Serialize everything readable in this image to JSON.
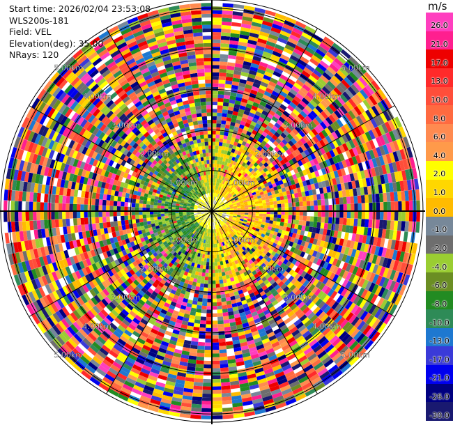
{
  "header": {
    "start_time": "Start time: 2026/02/04 23:53:08",
    "instrument": "WLS200s-181",
    "field": "Field: VEL",
    "elevation": "Elevation(deg): 35.00",
    "nrays": "NRays: 120"
  },
  "chart_data": {
    "type": "heatmap",
    "projection": "polar PPI scan",
    "field": "VEL",
    "elevation_deg": 35.0,
    "n_rays": 120,
    "range_ring_labels": [
      "1.00km",
      "2.00km",
      "3.00km",
      "4.00km",
      "5.00km"
    ],
    "range_rings_km": [
      1,
      2,
      3,
      4,
      5
    ],
    "max_range_km": 5.2,
    "pattern": "near range (< ~2 km): coherent velocities, positive (yellow/orange) toward the north-east and south-east, negative (green) toward the west; beyond ~2 km: noisy speckle across the full color range"
  },
  "colorbar": {
    "unit": "m/s",
    "ticks": [
      "26.0",
      "21.0",
      "17.0",
      "13.0",
      "10.0",
      "8.0",
      "6.0",
      "4.0",
      "2.0",
      "1.0",
      "0.0",
      "-1.0",
      "-2.0",
      "-4.0",
      "-6.0",
      "-8.0",
      "-10.0",
      "-13.0",
      "-17.0",
      "-21.0",
      "-26.0",
      "-30.0"
    ],
    "colors": [
      "#ff3fbf",
      "#ff1f8f",
      "#ee0000",
      "#ff2a2a",
      "#ff4e3a",
      "#ff6a40",
      "#ff8a50",
      "#ff9a4a",
      "#ffff00",
      "#ffd700",
      "#ffbb00",
      "#778899",
      "#6e6e6e",
      "#9acd32",
      "#6b8e23",
      "#228b22",
      "#2e8b57",
      "#1e78d0",
      "#3a3ad8",
      "#0000ee",
      "#000080",
      "#191970"
    ]
  }
}
